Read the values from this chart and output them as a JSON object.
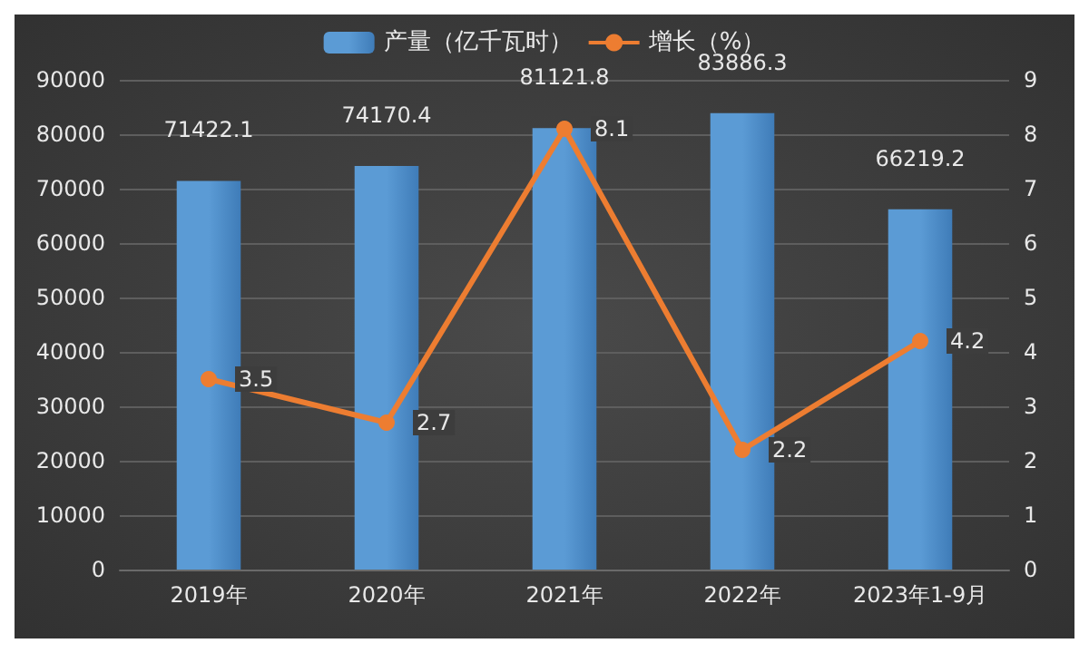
{
  "chart_data": {
    "type": "bar",
    "categories": [
      "2019年",
      "2020年",
      "2021年",
      "2022年",
      "2023年1-9月"
    ],
    "series": [
      {
        "name": "产量（亿千瓦时）",
        "color": "#5b9bd5",
        "values": [
          71422.1,
          74170.4,
          81121.8,
          83886.3,
          66219.2
        ]
      },
      {
        "name": "增长（%）",
        "type": "line",
        "axis": "y2",
        "color": "#ed7d31",
        "values": [
          3.5,
          2.7,
          8.1,
          2.2,
          4.2
        ]
      }
    ],
    "ylim": [
      0,
      90000
    ],
    "yticks": [
      0,
      10000,
      20000,
      30000,
      40000,
      50000,
      60000,
      70000,
      80000,
      90000
    ],
    "y2lim": [
      0,
      9
    ],
    "y2ticks": [
      0,
      1,
      2,
      3,
      4,
      5,
      6,
      7,
      8,
      9
    ],
    "grid": "y",
    "legend": "top",
    "data_labels": true,
    "marker": "circle"
  }
}
